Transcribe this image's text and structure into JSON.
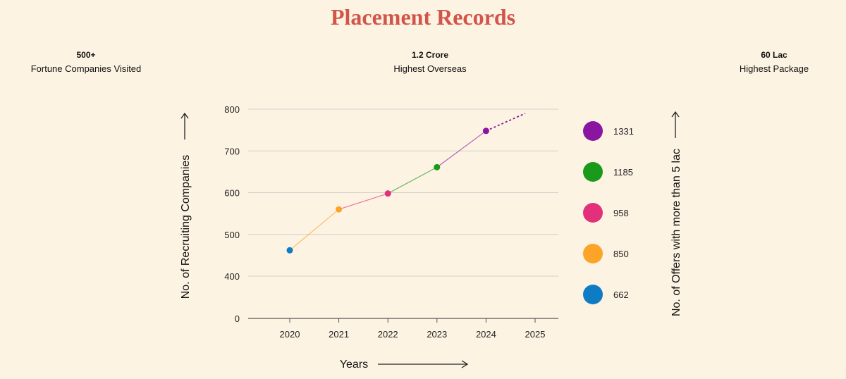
{
  "page": {
    "title": "Placement Records",
    "stats": [
      {
        "value": "500+",
        "label": "Fortune Companies Visited"
      },
      {
        "value": "1.2 Crore",
        "label": "Highest Overseas"
      },
      {
        "value": "60 Lac",
        "label": "Highest Package"
      }
    ]
  },
  "chart_data": {
    "type": "line",
    "title": "",
    "xlabel": "Years",
    "ylabel": "No. of Recruiting Companies",
    "y2label": "No. of Offers with more than 5 lac",
    "x": [
      2020,
      2021,
      2022,
      2023,
      2024
    ],
    "x_ticks": [
      2020,
      2021,
      2022,
      2023,
      2024,
      2025
    ],
    "y_ticks": [
      0,
      400,
      500,
      600,
      700,
      800
    ],
    "y_axis_break": "between 0 and 400",
    "ylim": [
      400,
      800
    ],
    "grid": true,
    "series": [
      {
        "values": [
          462,
          560,
          598,
          661,
          748
        ]
      }
    ],
    "projection": {
      "x": [
        2024,
        2024.8
      ],
      "values": [
        748,
        790
      ],
      "style": "dotted"
    },
    "point_colors": [
      "#0e7cc4",
      "#fba428",
      "#e3307b",
      "#1a9a1a",
      "#8a15a0"
    ],
    "legend": {
      "placement": "right",
      "items": [
        {
          "label": "1331",
          "color": "#8a15a0"
        },
        {
          "label": "1185",
          "color": "#1a9a1a"
        },
        {
          "label": "958",
          "color": "#e3307b"
        },
        {
          "label": "850",
          "color": "#fba428"
        },
        {
          "label": "662",
          "color": "#0e7cc4"
        }
      ]
    }
  }
}
